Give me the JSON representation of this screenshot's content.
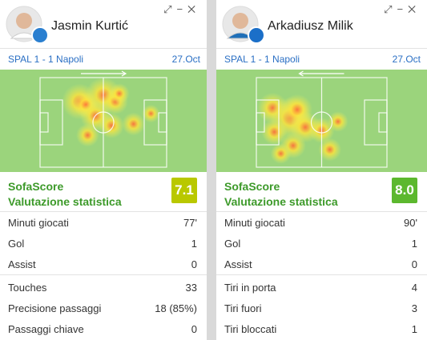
{
  "cards": [
    {
      "player": "Jasmin Kurtić",
      "match": "SPAL 1 - 1 Napoli",
      "date": "27.Oct",
      "rating_title": "SofaScore",
      "rating_subtitle": "Valutazione statistica",
      "rating": "7.1",
      "stats": [
        {
          "label": "Minuti giocati",
          "value": "77'"
        },
        {
          "label": "Gol",
          "value": "1"
        },
        {
          "label": "Assist",
          "value": "0"
        },
        {
          "label": "Touches",
          "value": "33"
        },
        {
          "label": "Precisione passaggi",
          "value": "18 (85%)"
        },
        {
          "label": "Passaggi chiave",
          "value": "0"
        }
      ]
    },
    {
      "player": "Arkadiusz Milik",
      "match": "SPAL 1 - 1 Napoli",
      "date": "27.Oct",
      "rating_title": "SofaScore",
      "rating_subtitle": "Valutazione statistica",
      "rating": "8.0",
      "stats": [
        {
          "label": "Minuti giocati",
          "value": "90'"
        },
        {
          "label": "Gol",
          "value": "1"
        },
        {
          "label": "Assist",
          "value": "0"
        },
        {
          "label": "Tiri in porta",
          "value": "4"
        },
        {
          "label": "Tiri fuori",
          "value": "3"
        },
        {
          "label": "Tiri bloccati",
          "value": "1"
        }
      ]
    }
  ]
}
